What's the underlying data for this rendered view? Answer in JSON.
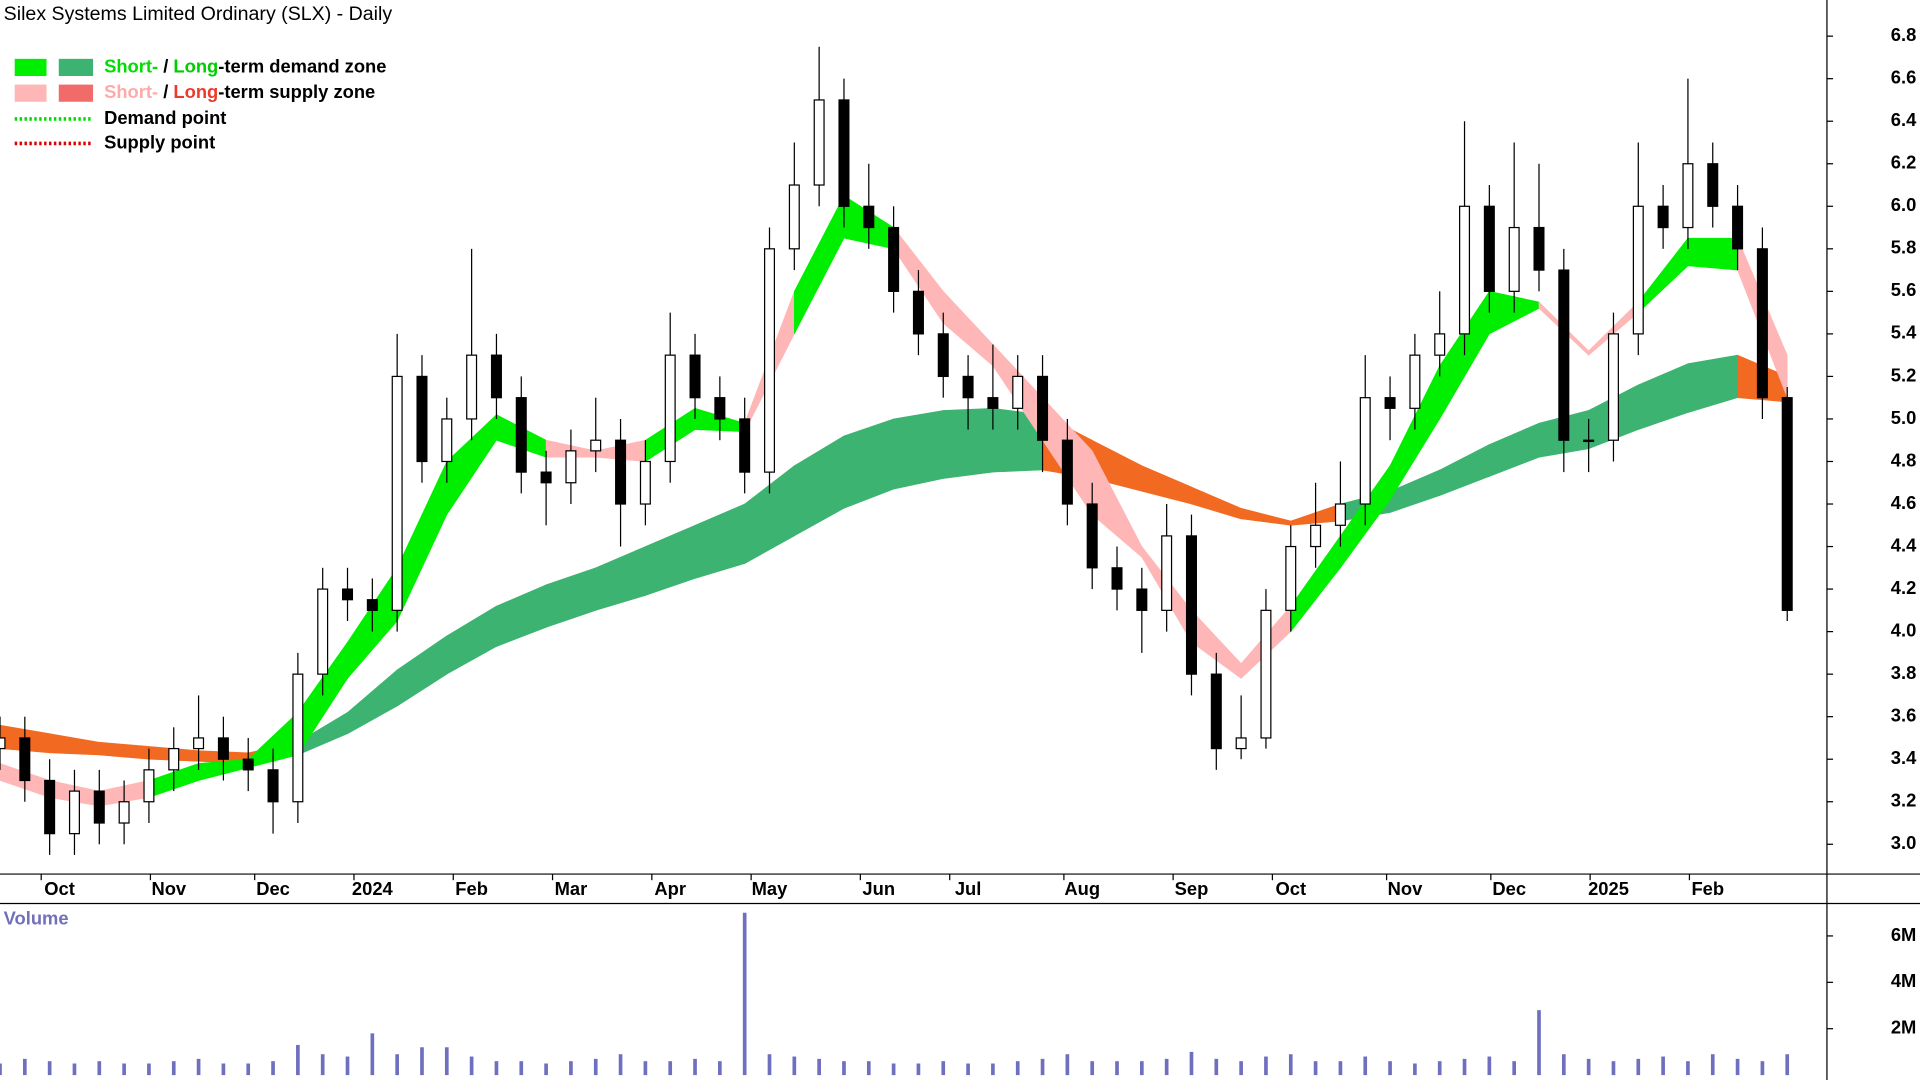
{
  "chart_data": [
    {
      "type": "candlestick",
      "title": "Silex Systems Limited Ordinary (SLX) - Daily",
      "legend": [
        {
          "swatches": [
            "#00ee00",
            "#3cb371"
          ],
          "text": [
            "Short-",
            " / ",
            "Long",
            "-term demand zone"
          ],
          "text_colors": [
            "#00dd00",
            "#000000",
            "#00cc00",
            "#000000"
          ]
        },
        {
          "swatches": [
            "#ffb6b6",
            "#f26b6b"
          ],
          "text": [
            "Short-",
            " / ",
            "Long",
            "-term supply zone"
          ],
          "text_colors": [
            "#ffaaaa",
            "#000000",
            "#ee3a2a",
            "#000000"
          ]
        },
        {
          "line": "#00dd00",
          "text": [
            "Demand point"
          ],
          "text_colors": [
            "#000000"
          ]
        },
        {
          "line": "#dd0000",
          "text": [
            "Supply point"
          ],
          "text_colors": [
            "#000000"
          ]
        }
      ],
      "x": [
        0,
        5,
        10,
        15,
        20,
        25,
        30,
        35,
        40,
        45,
        50,
        55,
        60,
        65,
        70,
        75,
        80,
        85,
        90,
        95,
        100,
        105,
        110,
        115,
        120,
        125,
        130,
        135,
        140,
        145,
        150,
        155,
        160,
        165,
        170,
        175,
        180,
        185,
        190,
        195,
        200,
        205,
        210,
        215,
        220,
        225,
        230,
        235,
        240,
        245,
        250,
        255,
        260,
        265,
        270,
        275,
        280,
        285,
        290,
        295,
        300,
        305,
        310,
        315,
        320,
        325,
        330,
        335,
        340,
        345,
        350,
        355,
        360
      ],
      "open": [
        3.45,
        3.5,
        3.3,
        3.05,
        3.25,
        3.1,
        3.2,
        3.35,
        3.45,
        3.5,
        3.4,
        3.35,
        3.2,
        3.8,
        4.2,
        4.15,
        4.1,
        5.2,
        4.8,
        5.0,
        5.3,
        5.1,
        4.75,
        4.7,
        4.85,
        4.9,
        4.6,
        4.8,
        5.3,
        5.1,
        5.0,
        4.75,
        5.8,
        6.1,
        6.5,
        6.0,
        5.9,
        5.6,
        5.4,
        5.2,
        5.1,
        5.05,
        5.2,
        4.9,
        4.6,
        4.3,
        4.2,
        4.1,
        4.45,
        3.8,
        3.45,
        3.5,
        4.1,
        4.4,
        4.5,
        4.6,
        5.1,
        5.05,
        5.3,
        5.4,
        6.0,
        5.6,
        5.9,
        5.7,
        4.9,
        4.9,
        5.4,
        6.0,
        5.9,
        6.2,
        6.0,
        5.8,
        5.1
      ],
      "high": [
        3.6,
        3.6,
        3.4,
        3.35,
        3.35,
        3.3,
        3.45,
        3.55,
        3.7,
        3.6,
        3.5,
        3.45,
        3.9,
        4.3,
        4.3,
        4.25,
        5.4,
        5.3,
        5.1,
        5.8,
        5.4,
        5.2,
        4.85,
        4.95,
        5.1,
        5.0,
        4.9,
        5.5,
        5.4,
        5.2,
        5.1,
        5.9,
        6.3,
        6.75,
        6.6,
        6.2,
        6.0,
        5.7,
        5.5,
        5.3,
        5.35,
        5.3,
        5.3,
        5.0,
        4.7,
        4.4,
        4.3,
        4.6,
        4.55,
        3.9,
        3.7,
        4.2,
        4.5,
        4.7,
        4.8,
        5.3,
        5.2,
        5.4,
        5.6,
        6.4,
        6.1,
        6.3,
        6.2,
        5.8,
        5.0,
        5.5,
        6.3,
        6.1,
        6.6,
        6.3,
        6.1,
        5.9,
        5.15
      ],
      "low": [
        3.35,
        3.2,
        2.95,
        2.95,
        3.0,
        3.0,
        3.1,
        3.25,
        3.35,
        3.3,
        3.25,
        3.05,
        3.1,
        3.7,
        4.05,
        4.0,
        4.0,
        4.7,
        4.7,
        4.9,
        5.0,
        4.65,
        4.5,
        4.6,
        4.75,
        4.4,
        4.5,
        4.7,
        5.0,
        4.9,
        4.65,
        4.65,
        5.7,
        6.0,
        5.9,
        5.8,
        5.5,
        5.3,
        5.1,
        4.95,
        4.95,
        4.95,
        4.75,
        4.5,
        4.2,
        4.1,
        3.9,
        4.0,
        3.7,
        3.35,
        3.4,
        3.45,
        4.0,
        4.3,
        4.4,
        4.5,
        4.9,
        4.95,
        5.2,
        5.3,
        5.5,
        5.5,
        5.6,
        4.75,
        4.75,
        4.8,
        5.3,
        5.8,
        5.8,
        5.9,
        5.7,
        5.0,
        4.05
      ],
      "close": [
        3.5,
        3.3,
        3.05,
        3.25,
        3.1,
        3.2,
        3.35,
        3.45,
        3.5,
        3.4,
        3.35,
        3.2,
        3.8,
        4.2,
        4.15,
        4.1,
        5.2,
        4.8,
        5.0,
        5.3,
        5.1,
        4.75,
        4.7,
        4.85,
        4.9,
        4.6,
        4.8,
        5.3,
        5.1,
        5.0,
        4.75,
        5.8,
        6.1,
        6.5,
        6.0,
        5.9,
        5.6,
        5.4,
        5.2,
        5.1,
        5.05,
        5.2,
        4.9,
        4.6,
        4.3,
        4.2,
        4.1,
        4.45,
        3.8,
        3.45,
        3.5,
        4.1,
        4.4,
        4.5,
        4.6,
        5.1,
        5.05,
        5.3,
        5.4,
        6.0,
        5.6,
        5.9,
        5.7,
        4.9,
        4.9,
        5.4,
        6.0,
        5.9,
        6.2,
        6.0,
        5.8,
        5.1,
        4.1
      ],
      "up_color": "#ffffff",
      "down_color": "#000000",
      "zone_colors": {
        "short_demand": "#00ee00",
        "short_supply": "#ffb6b6",
        "long_demand": "#3cb371",
        "long_supply": "#f26a22"
      },
      "long_zone": {
        "x": [
          0,
          10,
          20,
          30,
          40,
          50,
          60,
          70,
          80,
          90,
          100,
          110,
          120,
          130,
          140,
          150,
          160,
          170,
          180,
          190,
          200,
          210,
          220,
          230,
          240,
          250,
          260,
          270,
          280,
          290,
          300,
          310,
          320,
          330,
          340,
          350,
          360
        ],
        "upper": [
          3.56,
          3.52,
          3.48,
          3.46,
          3.44,
          3.43,
          3.48,
          3.62,
          3.82,
          3.98,
          4.12,
          4.22,
          4.3,
          4.4,
          4.5,
          4.6,
          4.78,
          4.92,
          5.0,
          5.04,
          5.05,
          5.02,
          4.9,
          4.78,
          4.68,
          4.58,
          4.52,
          4.6,
          4.66,
          4.76,
          4.88,
          4.98,
          5.04,
          5.16,
          5.26,
          5.3,
          5.2
        ],
        "lower": [
          3.45,
          3.43,
          3.42,
          3.4,
          3.39,
          3.38,
          3.42,
          3.52,
          3.65,
          3.8,
          3.93,
          4.02,
          4.1,
          4.17,
          4.25,
          4.32,
          4.45,
          4.58,
          4.67,
          4.72,
          4.75,
          4.76,
          4.72,
          4.66,
          4.6,
          4.53,
          4.5,
          4.52,
          4.56,
          4.64,
          4.73,
          4.82,
          4.86,
          4.95,
          5.03,
          5.1,
          5.08
        ],
        "state": [
          "supply",
          "supply",
          "supply",
          "supply",
          "supply",
          "supply",
          "demand",
          "demand",
          "demand",
          "demand",
          "demand",
          "demand",
          "demand",
          "demand",
          "demand",
          "demand",
          "demand",
          "demand",
          "demand",
          "demand",
          "demand",
          "supply",
          "supply",
          "supply",
          "supply",
          "supply",
          "supply",
          "demand",
          "demand",
          "demand",
          "demand",
          "demand",
          "demand",
          "demand",
          "demand",
          "supply",
          "supply"
        ]
      },
      "short_zone": {
        "x": [
          0,
          10,
          20,
          30,
          40,
          50,
          60,
          70,
          80,
          90,
          100,
          110,
          120,
          130,
          140,
          150,
          160,
          170,
          180,
          190,
          200,
          210,
          220,
          230,
          240,
          250,
          260,
          270,
          280,
          290,
          300,
          310,
          320,
          330,
          340,
          350,
          360
        ],
        "upper": [
          3.38,
          3.3,
          3.25,
          3.3,
          3.38,
          3.4,
          3.62,
          3.95,
          4.3,
          4.8,
          5.02,
          4.9,
          4.85,
          4.9,
          5.05,
          4.98,
          5.6,
          6.05,
          5.9,
          5.6,
          5.35,
          5.1,
          4.85,
          4.4,
          4.1,
          3.85,
          4.12,
          4.45,
          4.78,
          5.25,
          5.6,
          5.55,
          5.32,
          5.55,
          5.85,
          5.85,
          5.3
        ],
        "lower": [
          3.3,
          3.22,
          3.18,
          3.22,
          3.3,
          3.36,
          3.42,
          3.78,
          4.05,
          4.55,
          4.9,
          4.82,
          4.82,
          4.8,
          4.95,
          4.94,
          5.4,
          5.85,
          5.8,
          5.45,
          5.25,
          4.9,
          4.55,
          4.35,
          3.95,
          3.78,
          4.0,
          4.3,
          4.62,
          5.0,
          5.4,
          5.52,
          5.3,
          5.5,
          5.72,
          5.7,
          5.1
        ],
        "state": [
          "supply",
          "supply",
          "supply",
          "demand",
          "demand",
          "demand",
          "demand",
          "demand",
          "demand",
          "demand",
          "demand",
          "supply",
          "supply",
          "demand",
          "demand",
          "supply",
          "demand",
          "demand",
          "supply",
          "supply",
          "supply",
          "supply",
          "supply",
          "supply",
          "supply",
          "supply",
          "demand",
          "demand",
          "demand",
          "demand",
          "demand",
          "supply",
          "supply",
          "demand",
          "demand",
          "supply",
          "supply"
        ]
      },
      "xlim": [
        0,
        368
      ],
      "xticks": [
        {
          "value": 12,
          "label": "Oct"
        },
        {
          "value": 34,
          "label": "Nov"
        },
        {
          "value": 55,
          "label": "Dec"
        },
        {
          "value": 75,
          "label": "2024"
        },
        {
          "value": 95,
          "label": "Feb"
        },
        {
          "value": 115,
          "label": "Mar"
        },
        {
          "value": 135,
          "label": "Apr"
        },
        {
          "value": 155,
          "label": "May"
        },
        {
          "value": 177,
          "label": "Jun"
        },
        {
          "value": 195,
          "label": "Jul"
        },
        {
          "value": 218,
          "label": "Aug"
        },
        {
          "value": 240,
          "label": "Sep"
        },
        {
          "value": 260,
          "label": "Oct"
        },
        {
          "value": 283,
          "label": "Nov"
        },
        {
          "value": 304,
          "label": "Dec"
        },
        {
          "value": 324,
          "label": "2025"
        },
        {
          "value": 344,
          "label": "Feb"
        }
      ],
      "ylim": [
        2.86,
        6.97
      ],
      "yticks": [
        {
          "value": 3,
          "label": "3.0"
        },
        3.2,
        3.4,
        3.6,
        3.8,
        {
          "value": 4,
          "label": "4.0"
        },
        4.2,
        4.4,
        4.6,
        4.8,
        {
          "value": 5,
          "label": "5.0"
        },
        5.2,
        5.4,
        5.6,
        5.8,
        {
          "value": 6,
          "label": "6.0"
        },
        6.2,
        6.4,
        6.6,
        6.8
      ]
    },
    {
      "type": "bar",
      "title": "Volume",
      "x": [
        0,
        5,
        10,
        15,
        20,
        25,
        30,
        35,
        40,
        45,
        50,
        55,
        60,
        65,
        70,
        75,
        80,
        85,
        90,
        95,
        100,
        105,
        110,
        115,
        120,
        125,
        130,
        135,
        140,
        145,
        150,
        155,
        160,
        165,
        170,
        175,
        180,
        185,
        190,
        195,
        200,
        205,
        210,
        215,
        220,
        225,
        230,
        235,
        240,
        245,
        250,
        255,
        260,
        265,
        270,
        275,
        280,
        285,
        290,
        295,
        300,
        305,
        310,
        315,
        320,
        325,
        330,
        335,
        340,
        345,
        350,
        355,
        360
      ],
      "values": [
        500000,
        700000,
        600000,
        500000,
        600000,
        500000,
        500000,
        600000,
        700000,
        500000,
        500000,
        600000,
        1300000,
        900000,
        800000,
        1800000,
        900000,
        1200000,
        1200000,
        800000,
        600000,
        600000,
        500000,
        600000,
        700000,
        900000,
        600000,
        600000,
        700000,
        600000,
        7000000,
        900000,
        800000,
        700000,
        600000,
        600000,
        500000,
        500000,
        600000,
        500000,
        500000,
        600000,
        700000,
        900000,
        600000,
        600000,
        600000,
        700000,
        1000000,
        700000,
        600000,
        800000,
        900000,
        600000,
        600000,
        800000,
        600000,
        500000,
        600000,
        700000,
        800000,
        600000,
        2800000,
        900000,
        700000,
        600000,
        700000,
        800000,
        600000,
        900000,
        700000,
        600000,
        900000
      ],
      "color": "#6f6fc0",
      "xlim": [
        0,
        368
      ],
      "ylim": [
        0,
        7400000
      ],
      "yticks": [
        {
          "value": 2000000,
          "label": "2M"
        },
        {
          "value": 4000000,
          "label": "4M"
        },
        {
          "value": 6000000,
          "label": "6M"
        }
      ]
    }
  ]
}
